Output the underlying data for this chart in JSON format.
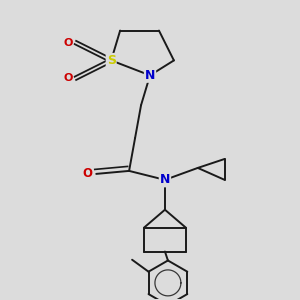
{
  "bg_color": "#dcdcdc",
  "bond_color": "#1a1a1a",
  "atom_colors": {
    "S": "#cccc00",
    "N": "#0000cc",
    "O": "#cc0000",
    "C": "#1a1a1a"
  }
}
